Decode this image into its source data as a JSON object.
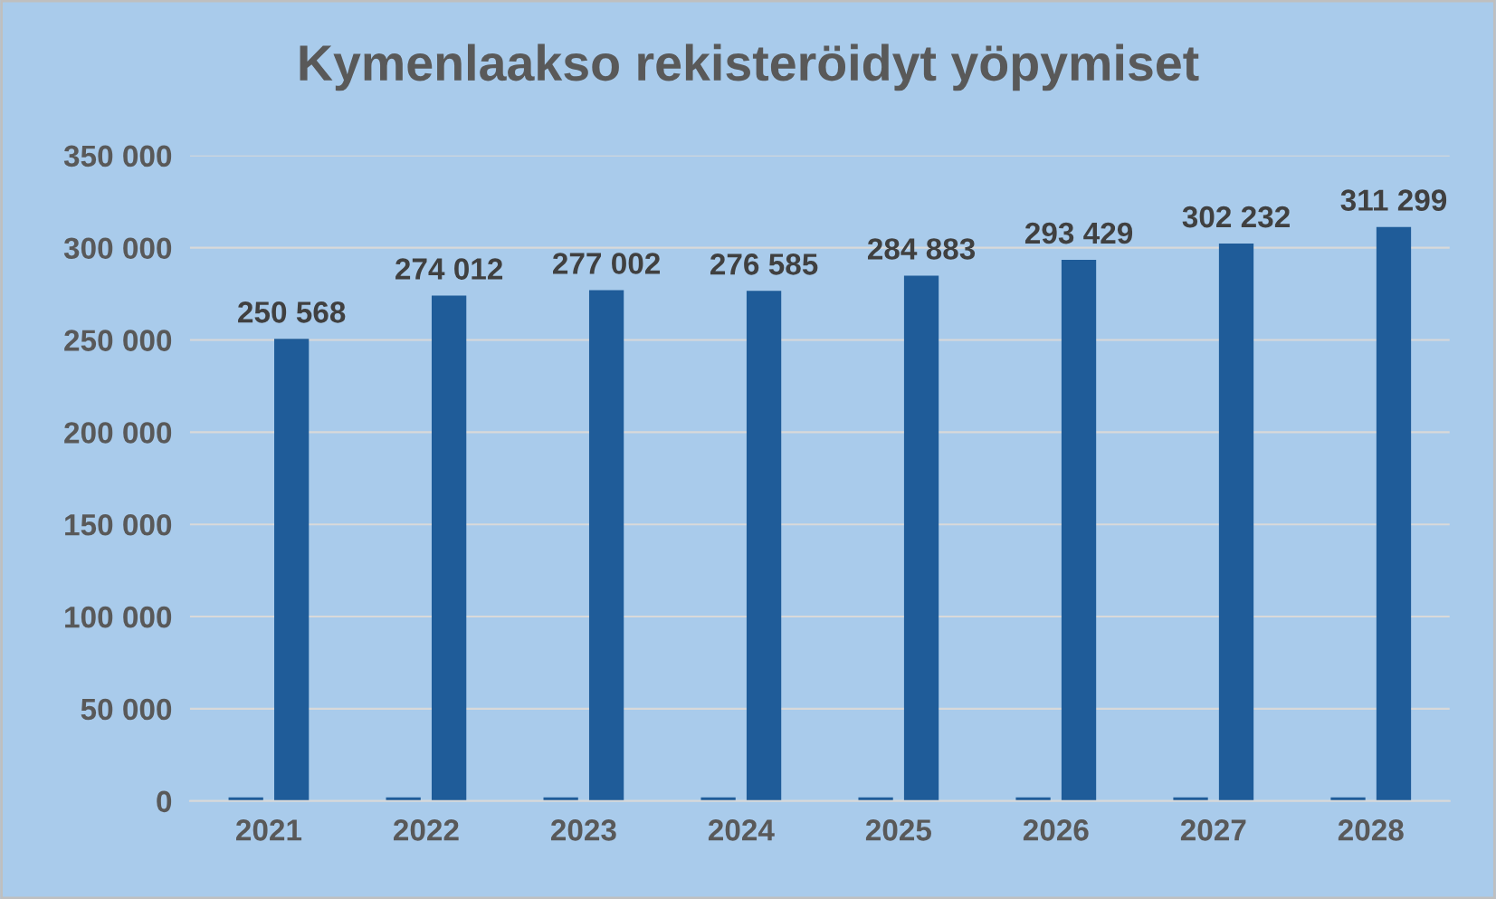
{
  "chart_data": {
    "type": "bar",
    "title": "Kymenlaakso rekisteröidyt yöpymiset",
    "categories": [
      "2021",
      "2022",
      "2023",
      "2024",
      "2025",
      "2026",
      "2027",
      "2028"
    ],
    "series": [
      {
        "color": "#1f5c99",
        "values": [
          2000,
          2000,
          2000,
          2000,
          2000,
          2000,
          2000,
          2000
        ]
      },
      {
        "color": "#1f5c99",
        "values": [
          250568,
          274012,
          277002,
          276585,
          284883,
          293429,
          302232,
          311299
        ],
        "value_labels": [
          "250 568",
          "274 012",
          "277 002",
          "276 585",
          "284 883",
          "293 429",
          "302 232",
          "311 299"
        ]
      }
    ],
    "ylim": [
      0,
      350000
    ],
    "yticks": [
      0,
      {
        "value": 50000,
        "label": "50 000"
      },
      {
        "value": 100000,
        "label": "100 000"
      },
      {
        "value": 150000,
        "label": "150 000"
      },
      {
        "value": 200000,
        "label": "200 000"
      },
      {
        "value": 250000,
        "label": "250 000"
      },
      {
        "value": 300000,
        "label": "300 000"
      },
      {
        "value": 350000,
        "label": "350 000"
      }
    ],
    "grid": "y",
    "legend": false
  }
}
